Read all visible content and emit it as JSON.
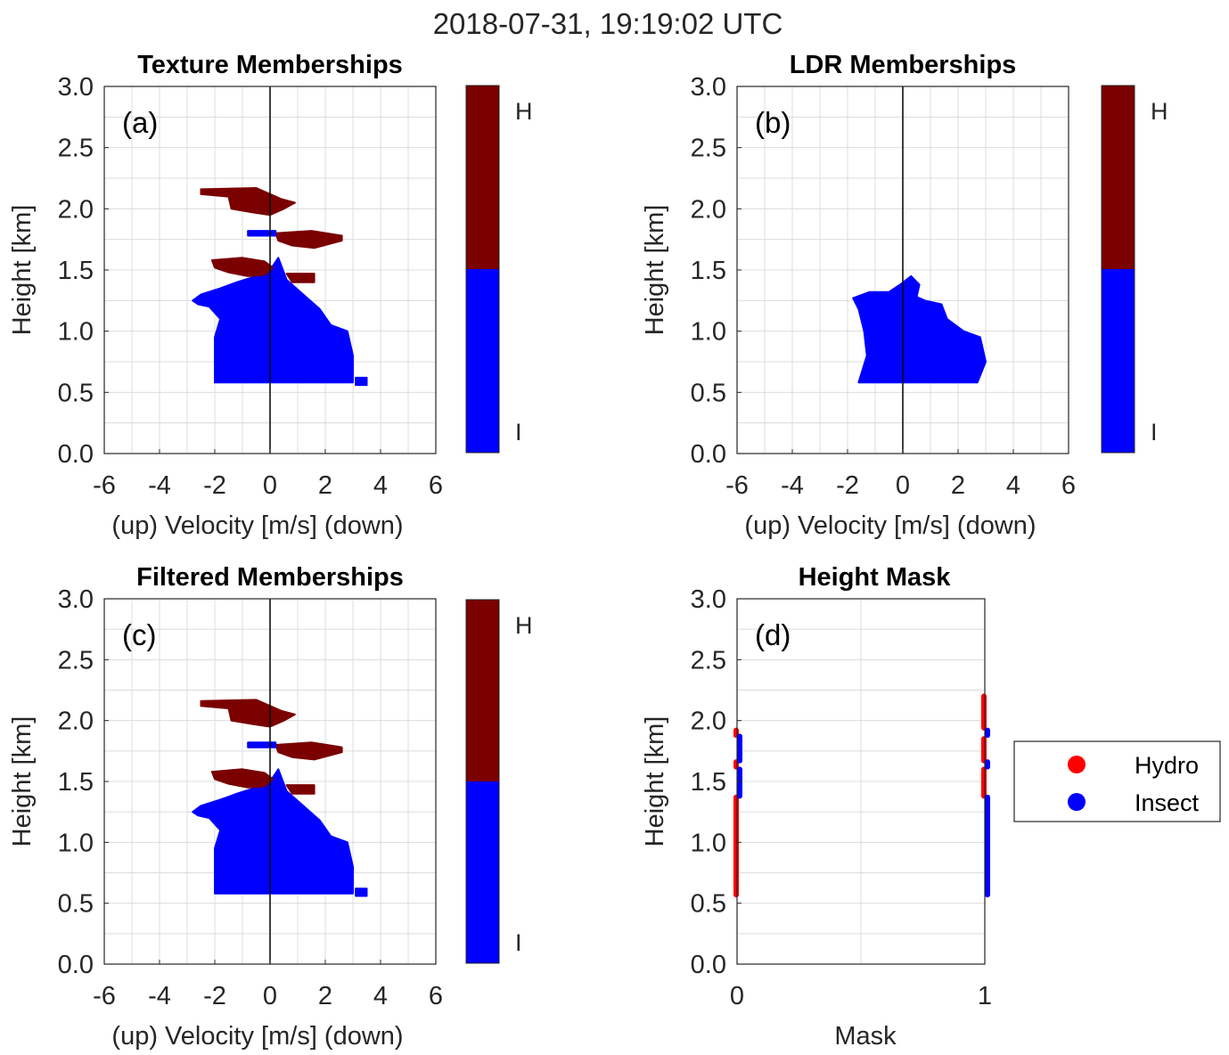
{
  "figure_title": "2018-07-31, 19:19:02 UTC",
  "colors": {
    "hydro_class": "#7b0000",
    "insect_class": "#0000ff",
    "hydro_mask": "#ff0000",
    "insect_mask": "#0000ff",
    "grid": "#dcdcdc"
  },
  "chart_data": [
    {
      "id": "a",
      "type": "heatmap",
      "title": "Texture Memberships",
      "panel_label": "(a)",
      "xlabel": "(up) Velocity [m/s] (down)",
      "ylabel": "Height [km]",
      "xlim": [
        -6,
        6
      ],
      "ylim": [
        0,
        3
      ],
      "xticks": [
        "-6",
        "-4",
        "-2",
        "0",
        "2",
        "4",
        "6"
      ],
      "yticks": [
        "0.0",
        "0.5",
        "1.0",
        "1.5",
        "2.0",
        "2.5",
        "3.0"
      ],
      "grid": true,
      "colorbar": {
        "classes": [
          "I",
          "H"
        ],
        "colors": [
          "#0000ff",
          "#7b0000"
        ]
      },
      "regions": [
        {
          "class": "I",
          "polygon": [
            [
              -2,
              0.58
            ],
            [
              -2,
              0.95
            ],
            [
              -1.8,
              1.1
            ],
            [
              -2.2,
              1.2
            ],
            [
              -2.6,
              1.22
            ],
            [
              -2.8,
              1.25
            ],
            [
              -2.5,
              1.3
            ],
            [
              -1.8,
              1.35
            ],
            [
              -1.2,
              1.4
            ],
            [
              -0.5,
              1.45
            ],
            [
              0,
              1.5
            ],
            [
              0.3,
              1.6
            ],
            [
              0.6,
              1.42
            ],
            [
              1.2,
              1.3
            ],
            [
              1.8,
              1.18
            ],
            [
              2.2,
              1.05
            ],
            [
              2.8,
              1.0
            ],
            [
              3,
              0.8
            ],
            [
              3,
              0.58
            ]
          ]
        },
        {
          "class": "I",
          "polygon": [
            [
              3.1,
              0.62
            ],
            [
              3.5,
              0.62
            ],
            [
              3.5,
              0.56
            ],
            [
              3.1,
              0.56
            ]
          ]
        },
        {
          "class": "H",
          "polygon": [
            [
              -2.5,
              2.16
            ],
            [
              -0.5,
              2.17
            ],
            [
              0.4,
              2.08
            ],
            [
              0.9,
              2.05
            ],
            [
              0.5,
              2.0
            ],
            [
              0,
              1.95
            ],
            [
              -0.6,
              1.97
            ],
            [
              -1.4,
              2.0
            ],
            [
              -1.5,
              2.1
            ],
            [
              -2.5,
              2.12
            ]
          ]
        },
        {
          "class": "H",
          "polygon": [
            [
              0.2,
              1.8
            ],
            [
              1.5,
              1.82
            ],
            [
              2.6,
              1.78
            ],
            [
              2.6,
              1.74
            ],
            [
              1.6,
              1.68
            ],
            [
              0.8,
              1.7
            ],
            [
              0.3,
              1.74
            ]
          ]
        },
        {
          "class": "I",
          "polygon": [
            [
              -0.8,
              1.82
            ],
            [
              0.2,
              1.82
            ],
            [
              0.2,
              1.78
            ],
            [
              -0.8,
              1.78
            ]
          ]
        },
        {
          "class": "H",
          "polygon": [
            [
              -2.1,
              1.58
            ],
            [
              -1.0,
              1.6
            ],
            [
              -0.2,
              1.57
            ],
            [
              0.1,
              1.52
            ],
            [
              -0.2,
              1.46
            ],
            [
              -0.8,
              1.45
            ],
            [
              -1.5,
              1.48
            ],
            [
              -2.0,
              1.52
            ]
          ]
        },
        {
          "class": "H",
          "polygon": [
            [
              0.6,
              1.47
            ],
            [
              1.6,
              1.47
            ],
            [
              1.6,
              1.4
            ],
            [
              0.8,
              1.4
            ]
          ]
        }
      ]
    },
    {
      "id": "b",
      "type": "heatmap",
      "title": "LDR Memberships",
      "panel_label": "(b)",
      "xlabel": "(up) Velocity [m/s] (down)",
      "ylabel": "Height [km]",
      "xlim": [
        -6,
        6
      ],
      "ylim": [
        0,
        3
      ],
      "xticks": [
        "-6",
        "-4",
        "-2",
        "0",
        "2",
        "4",
        "6"
      ],
      "yticks": [
        "0.0",
        "0.5",
        "1.0",
        "1.5",
        "2.0",
        "2.5",
        "3.0"
      ],
      "grid": true,
      "colorbar": {
        "classes": [
          "I",
          "H"
        ],
        "colors": [
          "#0000ff",
          "#7b0000"
        ]
      },
      "regions": [
        {
          "class": "I",
          "polygon": [
            [
              -1.6,
              0.58
            ],
            [
              -1.3,
              0.8
            ],
            [
              -1.4,
              1.0
            ],
            [
              -1.6,
              1.18
            ],
            [
              -1.8,
              1.27
            ],
            [
              -1.2,
              1.32
            ],
            [
              -0.5,
              1.32
            ],
            [
              -0.1,
              1.38
            ],
            [
              0.3,
              1.45
            ],
            [
              0.6,
              1.38
            ],
            [
              0.5,
              1.28
            ],
            [
              0.8,
              1.25
            ],
            [
              1.4,
              1.22
            ],
            [
              1.6,
              1.1
            ],
            [
              2.2,
              1.0
            ],
            [
              2.8,
              0.95
            ],
            [
              3.0,
              0.75
            ],
            [
              2.7,
              0.58
            ]
          ]
        }
      ]
    },
    {
      "id": "c",
      "type": "heatmap",
      "title": "Filtered Memberships",
      "panel_label": "(c)",
      "xlabel": "(up) Velocity [m/s] (down)",
      "ylabel": "Height [km]",
      "xlim": [
        -6,
        6
      ],
      "ylim": [
        0,
        3
      ],
      "xticks": [
        "-6",
        "-4",
        "-2",
        "0",
        "2",
        "4",
        "6"
      ],
      "yticks": [
        "0.0",
        "0.5",
        "1.0",
        "1.5",
        "2.0",
        "2.5",
        "3.0"
      ],
      "grid": true,
      "colorbar": {
        "classes": [
          "I",
          "H"
        ],
        "colors": [
          "#0000ff",
          "#7b0000"
        ]
      },
      "regions": [
        {
          "class": "I",
          "polygon": [
            [
              -2,
              0.58
            ],
            [
              -2,
              0.95
            ],
            [
              -1.8,
              1.1
            ],
            [
              -2.2,
              1.2
            ],
            [
              -2.6,
              1.22
            ],
            [
              -2.8,
              1.25
            ],
            [
              -2.5,
              1.3
            ],
            [
              -1.8,
              1.35
            ],
            [
              -1.2,
              1.4
            ],
            [
              -0.5,
              1.45
            ],
            [
              0,
              1.5
            ],
            [
              0.3,
              1.6
            ],
            [
              0.6,
              1.42
            ],
            [
              1.2,
              1.3
            ],
            [
              1.8,
              1.18
            ],
            [
              2.2,
              1.05
            ],
            [
              2.8,
              1.0
            ],
            [
              3,
              0.8
            ],
            [
              3,
              0.58
            ]
          ]
        },
        {
          "class": "I",
          "polygon": [
            [
              3.1,
              0.62
            ],
            [
              3.5,
              0.62
            ],
            [
              3.5,
              0.56
            ],
            [
              3.1,
              0.56
            ]
          ]
        },
        {
          "class": "H",
          "polygon": [
            [
              -2.5,
              2.16
            ],
            [
              -0.5,
              2.17
            ],
            [
              0.4,
              2.08
            ],
            [
              0.9,
              2.05
            ],
            [
              0.5,
              2.0
            ],
            [
              0,
              1.95
            ],
            [
              -0.6,
              1.97
            ],
            [
              -1.4,
              2.0
            ],
            [
              -1.5,
              2.1
            ],
            [
              -2.5,
              2.12
            ]
          ]
        },
        {
          "class": "H",
          "polygon": [
            [
              0.2,
              1.8
            ],
            [
              1.5,
              1.82
            ],
            [
              2.6,
              1.78
            ],
            [
              2.6,
              1.74
            ],
            [
              1.6,
              1.68
            ],
            [
              0.8,
              1.7
            ],
            [
              0.3,
              1.74
            ]
          ]
        },
        {
          "class": "I",
          "polygon": [
            [
              -0.8,
              1.82
            ],
            [
              0.2,
              1.82
            ],
            [
              0.2,
              1.78
            ],
            [
              -0.8,
              1.78
            ]
          ]
        },
        {
          "class": "H",
          "polygon": [
            [
              -2.1,
              1.58
            ],
            [
              -1.0,
              1.6
            ],
            [
              -0.2,
              1.57
            ],
            [
              0.1,
              1.52
            ],
            [
              -0.2,
              1.46
            ],
            [
              -0.8,
              1.45
            ],
            [
              -1.5,
              1.48
            ],
            [
              -2.0,
              1.52
            ]
          ]
        },
        {
          "class": "H",
          "polygon": [
            [
              0.6,
              1.47
            ],
            [
              1.6,
              1.47
            ],
            [
              1.6,
              1.4
            ],
            [
              0.8,
              1.4
            ]
          ]
        }
      ]
    },
    {
      "id": "d",
      "type": "scatter",
      "title": "Height Mask",
      "panel_label": "(d)",
      "xlabel": "Mask",
      "ylabel": "Height [km]",
      "xlim": [
        0,
        1
      ],
      "ylim": [
        0,
        3
      ],
      "xticks": [
        "0",
        "1"
      ],
      "yticks": [
        "0.0",
        "0.5",
        "1.0",
        "1.5",
        "2.0",
        "2.5",
        "3.0"
      ],
      "grid": true,
      "legend": {
        "position": "outside-right",
        "entries": [
          "Hydro",
          "Insect"
        ]
      },
      "series": [
        {
          "name": "Hydro",
          "color": "#ff0000",
          "segments": [
            {
              "x": 0,
              "y": [
                0.57,
                1.37
              ]
            },
            {
              "x": 0,
              "y": [
                1.62,
                1.66
              ]
            },
            {
              "x": 0,
              "y": [
                1.88,
                1.92
              ]
            },
            {
              "x": 1,
              "y": [
                1.38,
                1.6
              ]
            },
            {
              "x": 1,
              "y": [
                1.67,
                1.85
              ]
            },
            {
              "x": 1,
              "y": [
                1.94,
                2.2
              ]
            }
          ]
        },
        {
          "name": "Insect",
          "color": "#0000ff",
          "segments": [
            {
              "x": 0,
              "y": [
                1.38,
                1.6
              ]
            },
            {
              "x": 0,
              "y": [
                1.67,
                1.87
              ]
            },
            {
              "x": 1,
              "y": [
                0.57,
                1.37
              ]
            },
            {
              "x": 1,
              "y": [
                1.62,
                1.66
              ]
            },
            {
              "x": 1,
              "y": [
                1.88,
                1.92
              ]
            }
          ]
        }
      ]
    }
  ]
}
